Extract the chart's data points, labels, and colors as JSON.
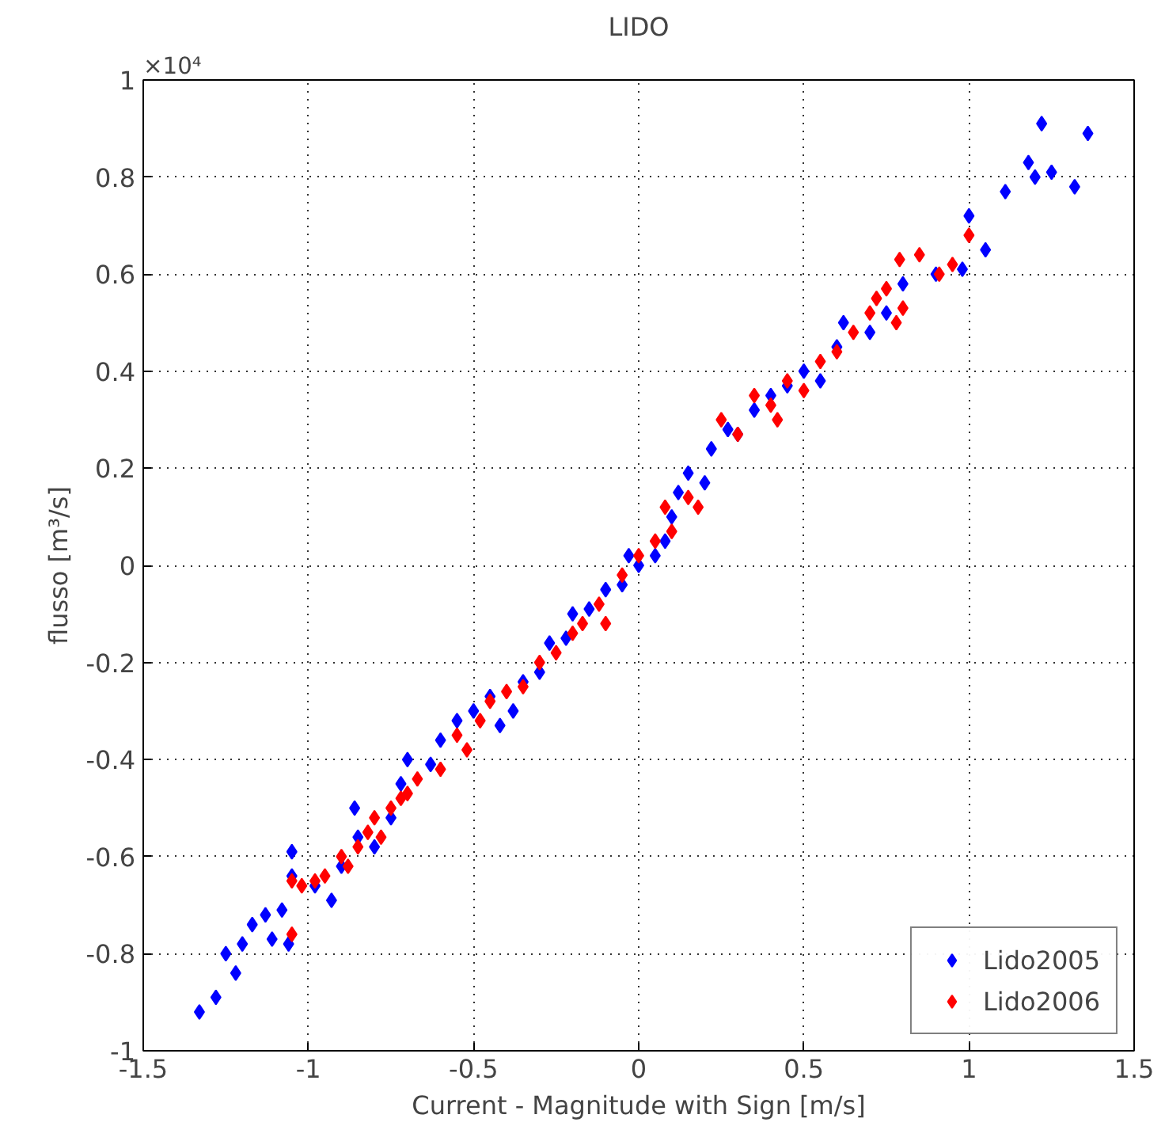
{
  "chart_data": {
    "type": "scatter",
    "title": "LIDO",
    "xlabel": "Current - Magnitude with Sign [m/s]",
    "ylabel": "flusso [m³/s]",
    "annotations": [
      "×10⁴"
    ],
    "xlim": [
      -1.5,
      1.5
    ],
    "xticks": [
      -1.5,
      -1,
      -0.5,
      0,
      0.5,
      1,
      1.5
    ],
    "ylim": [
      -1,
      1
    ],
    "yticks": [
      -1,
      -0.8,
      -0.6,
      -0.4,
      -0.2,
      0,
      0.2,
      0.4,
      0.6,
      0.8,
      1
    ],
    "grid": true,
    "legend": "bottom right",
    "marker": "diamond",
    "series": [
      {
        "name": "Lido2005",
        "color": "#0000ff",
        "x": [
          -1.33,
          -1.28,
          -1.22,
          -1.25,
          -1.2,
          -1.17,
          -1.13,
          -1.11,
          -1.06,
          -1.08,
          -1.05,
          -1.05,
          -0.98,
          -0.93,
          -0.9,
          -0.85,
          -0.86,
          -0.8,
          -0.75,
          -0.72,
          -0.7,
          -0.63,
          -0.6,
          -0.55,
          -0.5,
          -0.45,
          -0.42,
          -0.38,
          -0.35,
          -0.3,
          -0.27,
          -0.22,
          -0.2,
          -0.15,
          -0.1,
          -0.05,
          -0.03,
          0.0,
          0.05,
          0.08,
          0.1,
          0.12,
          0.15,
          0.2,
          0.22,
          0.27,
          0.3,
          0.35,
          0.4,
          0.45,
          0.5,
          0.55,
          0.6,
          0.62,
          0.7,
          0.75,
          0.8,
          0.9,
          0.98,
          1.0,
          1.05,
          1.11,
          1.18,
          1.2,
          1.22,
          1.25,
          1.32,
          1.36
        ],
        "values": [
          -0.92,
          -0.89,
          -0.84,
          -0.8,
          -0.78,
          -0.74,
          -0.72,
          -0.77,
          -0.78,
          -0.71,
          -0.64,
          -0.59,
          -0.66,
          -0.69,
          -0.62,
          -0.56,
          -0.5,
          -0.58,
          -0.52,
          -0.45,
          -0.4,
          -0.41,
          -0.36,
          -0.32,
          -0.3,
          -0.27,
          -0.33,
          -0.3,
          -0.24,
          -0.22,
          -0.16,
          -0.15,
          -0.1,
          -0.09,
          -0.05,
          -0.04,
          0.02,
          0.0,
          0.02,
          0.05,
          0.1,
          0.15,
          0.19,
          0.17,
          0.24,
          0.28,
          0.27,
          0.32,
          0.35,
          0.37,
          0.4,
          0.38,
          0.45,
          0.5,
          0.48,
          0.52,
          0.58,
          0.6,
          0.61,
          0.72,
          0.65,
          0.77,
          0.83,
          0.8,
          0.91,
          0.81,
          0.78,
          0.89
        ]
      },
      {
        "name": "Lido2006",
        "color": "#ff0000",
        "x": [
          -1.05,
          -1.05,
          -1.02,
          -0.98,
          -0.95,
          -0.9,
          -0.88,
          -0.85,
          -0.82,
          -0.8,
          -0.78,
          -0.75,
          -0.72,
          -0.7,
          -0.67,
          -0.6,
          -0.55,
          -0.52,
          -0.48,
          -0.45,
          -0.4,
          -0.35,
          -0.3,
          -0.25,
          -0.2,
          -0.17,
          -0.12,
          -0.1,
          -0.05,
          0.0,
          0.05,
          0.08,
          0.1,
          0.15,
          0.18,
          0.25,
          0.3,
          0.35,
          0.4,
          0.42,
          0.45,
          0.5,
          0.55,
          0.6,
          0.65,
          0.7,
          0.72,
          0.75,
          0.78,
          0.8,
          0.79,
          0.85,
          0.91,
          0.95,
          1.0
        ],
        "values": [
          -0.76,
          -0.65,
          -0.66,
          -0.65,
          -0.64,
          -0.6,
          -0.62,
          -0.58,
          -0.55,
          -0.52,
          -0.56,
          -0.5,
          -0.48,
          -0.47,
          -0.44,
          -0.42,
          -0.35,
          -0.38,
          -0.32,
          -0.28,
          -0.26,
          -0.25,
          -0.2,
          -0.18,
          -0.14,
          -0.12,
          -0.08,
          -0.12,
          -0.02,
          0.02,
          0.05,
          0.12,
          0.07,
          0.14,
          0.12,
          0.3,
          0.27,
          0.35,
          0.33,
          0.3,
          0.38,
          0.36,
          0.42,
          0.44,
          0.48,
          0.52,
          0.55,
          0.57,
          0.5,
          0.53,
          0.63,
          0.64,
          0.6,
          0.62,
          0.68
        ]
      }
    ]
  }
}
